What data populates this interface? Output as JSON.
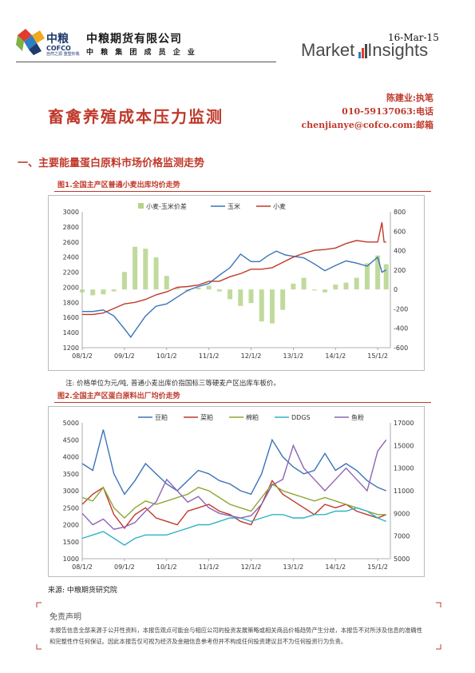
{
  "header": {
    "logo_cn": "中粮",
    "logo_en": "COFCO",
    "logo_tagline": "自然之源 重塑你我",
    "company_name": "中粮期货有限公司",
    "company_sub": "中 粮 集 团 成 员 企 业",
    "date": "16-Mar-15",
    "brand_market": "Market",
    "brand_insights": "Insights"
  },
  "contact": {
    "author": "陈建业:执笔",
    "phone": "010-59137063:电话",
    "email": "chenjianye@cofco.com:邮箱"
  },
  "title": "畜禽养殖成本压力监测",
  "section_title": "一、主要能量蛋白原料市场价格监测走势",
  "figure1": {
    "caption": "图1.全国主产区普通小麦出库均价走势",
    "note": "注: 价格单位为元/吨, 普通小麦出库价指国标三等硬麦产区出库车板价。"
  },
  "figure2": {
    "caption": "图2.全国主产区蛋白原料出厂均价走势"
  },
  "source": "来源: 中粮期货研究院",
  "disclaimer": {
    "title": "免责声明",
    "text": "本报告信息全部来源于公开性资料，本报告观点可能会与相应公司的投资发展策略或相关商品价格趋势产生分歧，本报告不对所涉及信息的准确性和完整性作任何保证。因此本报告仅可视为经济及金融信息参考但并不构成任何投资建议且不为任何投资行为负责。"
  },
  "colors": {
    "accent_red": "#c0392b",
    "navy": "#1f3a6e"
  },
  "chart_data": [
    {
      "type": "line",
      "title": "图1.全国主产区普通小麦出库均价走势",
      "x_ticks": [
        "08/1/2",
        "09/1/2",
        "10/1/2",
        "11/1/2",
        "12/1/2",
        "13/1/2",
        "14/1/2",
        "15/1/2"
      ],
      "y_left": {
        "min": 1200,
        "max": 3000,
        "ticks": [
          1200,
          1400,
          1600,
          1800,
          2000,
          2200,
          2400,
          2600,
          2800,
          3000
        ]
      },
      "y_right": {
        "min": -600,
        "max": 800,
        "ticks": [
          -600,
          -400,
          -200,
          0,
          200,
          400,
          600,
          800
        ]
      },
      "legend_position": "top",
      "series": [
        {
          "name": "小麦-玉米价差",
          "type": "bar",
          "axis": "right",
          "color": "#b5d48b",
          "x": [
            2008.0,
            2008.25,
            2008.5,
            2008.75,
            2009.0,
            2009.25,
            2009.5,
            2009.75,
            2010.0,
            2010.25,
            2010.5,
            2010.75,
            2011.0,
            2011.25,
            2011.5,
            2011.75,
            2012.0,
            2012.25,
            2012.5,
            2012.75,
            2013.0,
            2013.25,
            2013.5,
            2013.75,
            2014.0,
            2014.25,
            2014.5,
            2014.75,
            2015.0,
            2015.2
          ],
          "values": [
            -30,
            -60,
            -50,
            -20,
            180,
            440,
            420,
            330,
            140,
            20,
            -20,
            20,
            40,
            -20,
            -100,
            -170,
            -140,
            -330,
            -350,
            -210,
            60,
            120,
            -10,
            -30,
            50,
            70,
            120,
            270,
            350,
            260
          ]
        },
        {
          "name": "玉米",
          "type": "line",
          "axis": "left",
          "color": "#3a73b8",
          "x": [
            2008.0,
            2008.25,
            2008.5,
            2008.75,
            2009.0,
            2009.15,
            2009.3,
            2009.5,
            2009.75,
            2010.0,
            2010.25,
            2010.5,
            2010.75,
            2011.0,
            2011.25,
            2011.5,
            2011.75,
            2012.0,
            2012.2,
            2012.4,
            2012.6,
            2012.8,
            2013.0,
            2013.25,
            2013.5,
            2013.75,
            2014.0,
            2014.25,
            2014.5,
            2014.75,
            2015.0,
            2015.1,
            2015.2
          ],
          "values": [
            1680,
            1680,
            1700,
            1620,
            1450,
            1340,
            1460,
            1620,
            1750,
            1780,
            1870,
            1960,
            2010,
            2050,
            2160,
            2260,
            2440,
            2340,
            2340,
            2420,
            2480,
            2430,
            2410,
            2390,
            2310,
            2220,
            2290,
            2350,
            2320,
            2280,
            2400,
            2200,
            2230
          ]
        },
        {
          "name": "小麦",
          "type": "line",
          "axis": "left",
          "color": "#c0392b",
          "x": [
            2008.0,
            2008.25,
            2008.5,
            2008.75,
            2009.0,
            2009.25,
            2009.5,
            2009.75,
            2010.0,
            2010.25,
            2010.5,
            2010.75,
            2011.0,
            2011.25,
            2011.5,
            2011.75,
            2012.0,
            2012.25,
            2012.5,
            2012.75,
            2013.0,
            2013.25,
            2013.5,
            2013.75,
            2014.0,
            2014.25,
            2014.5,
            2014.75,
            2015.0,
            2015.1,
            2015.15,
            2015.2
          ],
          "values": [
            1640,
            1640,
            1660,
            1720,
            1780,
            1800,
            1840,
            1900,
            1940,
            2000,
            2010,
            2030,
            2080,
            2080,
            2140,
            2180,
            2240,
            2240,
            2260,
            2330,
            2400,
            2450,
            2490,
            2500,
            2520,
            2580,
            2620,
            2600,
            2600,
            2860,
            2600,
            2600
          ]
        }
      ]
    },
    {
      "type": "line",
      "title": "图2.全国主产区蛋白原料出厂均价走势",
      "x_ticks": [
        "08/1/2",
        "09/1/2",
        "10/1/2",
        "11/1/2",
        "12/1/2",
        "13/1/2",
        "14/1/2",
        "15/1/2"
      ],
      "y_left": {
        "min": 1000,
        "max": 5000,
        "ticks": [
          1000,
          1500,
          2000,
          2500,
          3000,
          3500,
          4000,
          4500,
          5000
        ]
      },
      "y_right": {
        "min": 5000,
        "max": 17000,
        "ticks": [
          5000,
          7000,
          9000,
          11000,
          13000,
          15000,
          17000
        ]
      },
      "legend_position": "top",
      "series": [
        {
          "name": "豆粕",
          "axis": "left",
          "color": "#3a73b8",
          "x": [
            2008.0,
            2008.25,
            2008.5,
            2008.75,
            2009.0,
            2009.25,
            2009.5,
            2009.75,
            2010.0,
            2010.25,
            2010.5,
            2010.75,
            2011.0,
            2011.25,
            2011.5,
            2011.75,
            2012.0,
            2012.25,
            2012.5,
            2012.75,
            2013.0,
            2013.25,
            2013.5,
            2013.75,
            2014.0,
            2014.25,
            2014.5,
            2014.75,
            2015.0,
            2015.2
          ],
          "values": [
            3800,
            3600,
            4800,
            3500,
            2900,
            3300,
            3800,
            3500,
            3200,
            3000,
            3300,
            3600,
            3500,
            3300,
            3200,
            3000,
            2900,
            3500,
            4500,
            4000,
            3700,
            3500,
            3600,
            4100,
            3600,
            3800,
            3600,
            3300,
            3100,
            3000
          ]
        },
        {
          "name": "菜粕",
          "axis": "left",
          "color": "#c0392b",
          "x": [
            2008.0,
            2008.25,
            2008.5,
            2008.75,
            2009.0,
            2009.25,
            2009.5,
            2009.75,
            2010.0,
            2010.25,
            2010.5,
            2010.75,
            2011.0,
            2011.25,
            2011.5,
            2011.75,
            2012.0,
            2012.25,
            2012.5,
            2012.75,
            2013.0,
            2013.25,
            2013.5,
            2013.75,
            2014.0,
            2014.25,
            2014.5,
            2014.75,
            2015.0,
            2015.2
          ],
          "values": [
            2600,
            2900,
            3100,
            2300,
            1900,
            2300,
            2500,
            2200,
            2100,
            2000,
            2400,
            2500,
            2600,
            2400,
            2300,
            2100,
            2000,
            2600,
            3300,
            2900,
            2700,
            2500,
            2300,
            2600,
            2500,
            2600,
            2400,
            2300,
            2200,
            2300
          ]
        },
        {
          "name": "棉粕",
          "axis": "left",
          "color": "#8aa832",
          "x": [
            2008.0,
            2008.25,
            2008.5,
            2008.75,
            2009.0,
            2009.25,
            2009.5,
            2009.75,
            2010.0,
            2010.25,
            2010.5,
            2010.75,
            2011.0,
            2011.25,
            2011.5,
            2011.75,
            2012.0,
            2012.25,
            2012.5,
            2012.75,
            2013.0,
            2013.25,
            2013.5,
            2013.75,
            2014.0,
            2014.25,
            2014.5,
            2014.75,
            2015.0,
            2015.2
          ],
          "values": [
            2800,
            2700,
            3100,
            2500,
            2200,
            2500,
            2700,
            2600,
            2700,
            2800,
            2900,
            3100,
            3000,
            2800,
            2600,
            2500,
            2400,
            2800,
            3200,
            3000,
            2900,
            2800,
            2700,
            2800,
            2700,
            2600,
            2500,
            2400,
            2300,
            2300
          ]
        },
        {
          "name": "DDGS",
          "axis": "left",
          "color": "#2fb3c6",
          "x": [
            2008.0,
            2008.25,
            2008.5,
            2008.75,
            2009.0,
            2009.25,
            2009.5,
            2009.75,
            2010.0,
            2010.25,
            2010.5,
            2010.75,
            2011.0,
            2011.25,
            2011.5,
            2011.75,
            2012.0,
            2012.25,
            2012.5,
            2012.75,
            2013.0,
            2013.25,
            2013.5,
            2013.75,
            2014.0,
            2014.25,
            2014.5,
            2014.75,
            2015.0,
            2015.2
          ],
          "values": [
            1600,
            1700,
            1800,
            1600,
            1400,
            1600,
            1700,
            1700,
            1700,
            1800,
            1900,
            2000,
            2000,
            2100,
            2200,
            2200,
            2100,
            2200,
            2300,
            2300,
            2200,
            2200,
            2300,
            2300,
            2400,
            2400,
            2500,
            2400,
            2200,
            2100
          ]
        },
        {
          "name": "鱼粉",
          "axis": "right",
          "color": "#8e63b5",
          "x": [
            2008.0,
            2008.25,
            2008.5,
            2008.75,
            2009.0,
            2009.25,
            2009.5,
            2009.75,
            2010.0,
            2010.25,
            2010.5,
            2010.75,
            2011.0,
            2011.25,
            2011.5,
            2011.75,
            2012.0,
            2012.25,
            2012.5,
            2012.75,
            2013.0,
            2013.25,
            2013.5,
            2013.75,
            2014.0,
            2014.25,
            2014.5,
            2014.75,
            2015.0,
            2015.2
          ],
          "values": [
            9000,
            8000,
            8500,
            7600,
            7800,
            8200,
            9200,
            10000,
            12000,
            11000,
            10000,
            10500,
            9500,
            9000,
            8800,
            8600,
            8800,
            9800,
            11500,
            12000,
            15000,
            13000,
            12000,
            11000,
            12000,
            13000,
            12000,
            11000,
            14500,
            15500
          ]
        }
      ]
    }
  ]
}
